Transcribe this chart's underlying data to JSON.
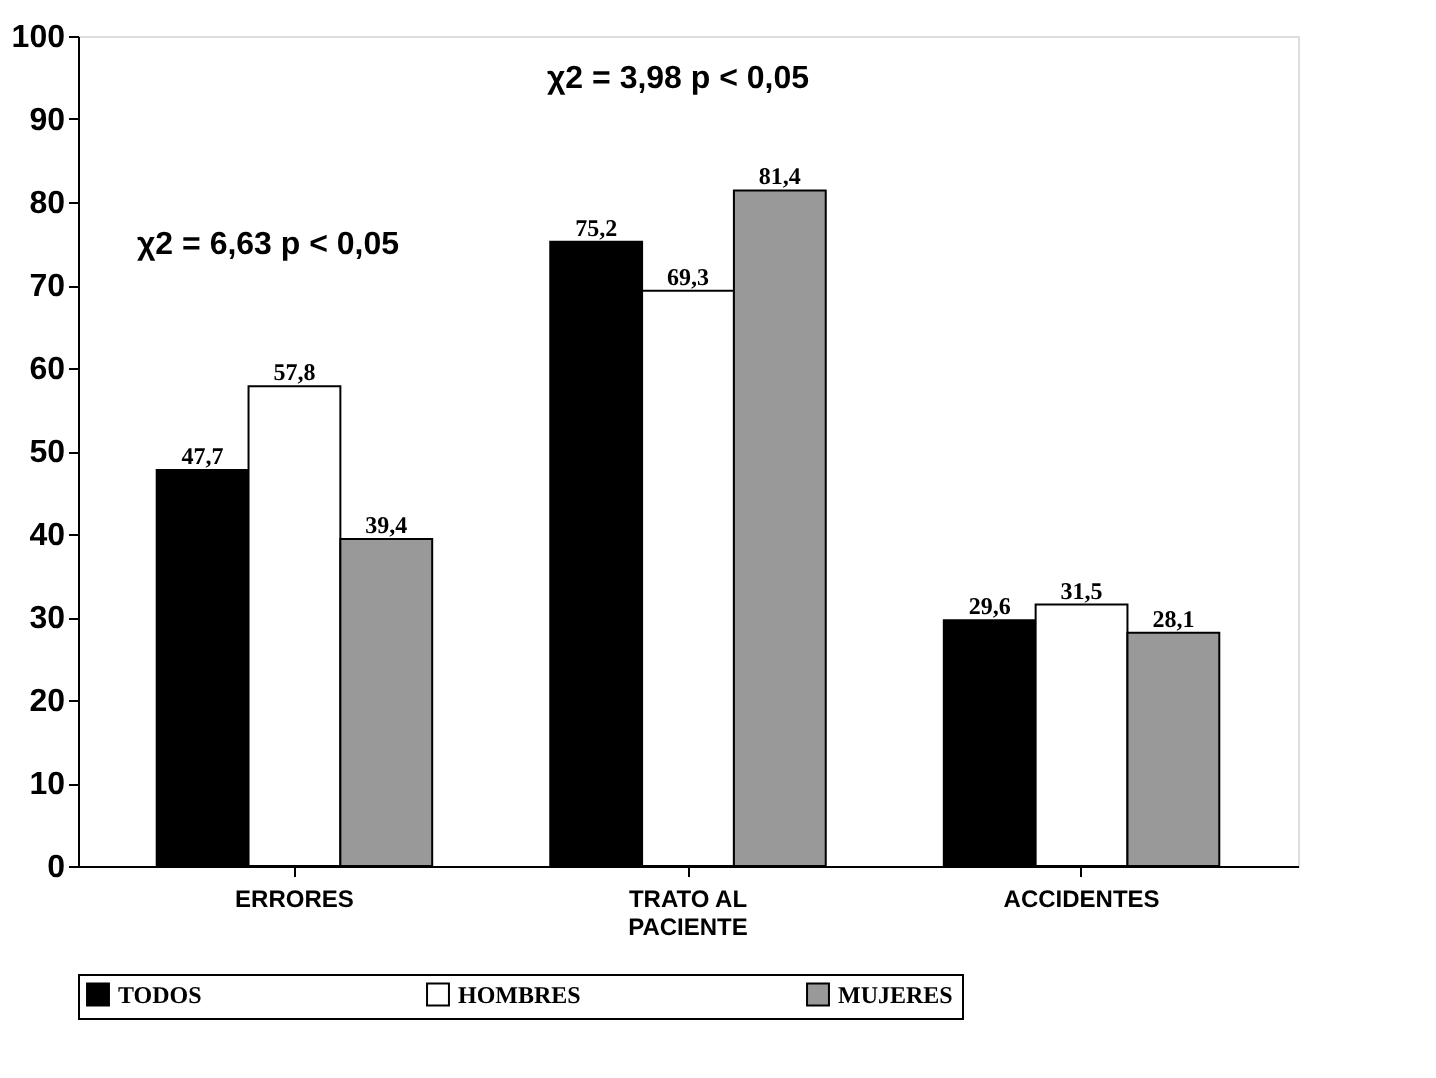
{
  "chart_data": {
    "type": "bar",
    "categories": [
      "ERRORES",
      "TRATO AL PACIENTE",
      "ACCIDENTES"
    ],
    "series": [
      {
        "name": "TODOS",
        "color": "#000000",
        "values": [
          47.7,
          75.2,
          29.6
        ],
        "value_labels": [
          "47,7",
          "75,2",
          "29,6"
        ]
      },
      {
        "name": "HOMBRES",
        "color": "#ffffff",
        "values": [
          57.8,
          69.3,
          31.5
        ],
        "value_labels": [
          "57,8",
          "69,3",
          "31,5"
        ]
      },
      {
        "name": "MUJERES",
        "color": "#999999",
        "values": [
          39.4,
          81.4,
          28.1
        ],
        "value_labels": [
          "39,4",
          "81,4",
          "28,1"
        ]
      }
    ],
    "ylim": [
      0,
      100
    ],
    "yticks": [
      0,
      10,
      20,
      30,
      40,
      50,
      60,
      70,
      80,
      90,
      100
    ],
    "grid": false,
    "legend": "bottom",
    "annotations": [
      "χ2 = 6,63 p < 0,05",
      "χ2 = 3,98 p < 0,05"
    ]
  }
}
